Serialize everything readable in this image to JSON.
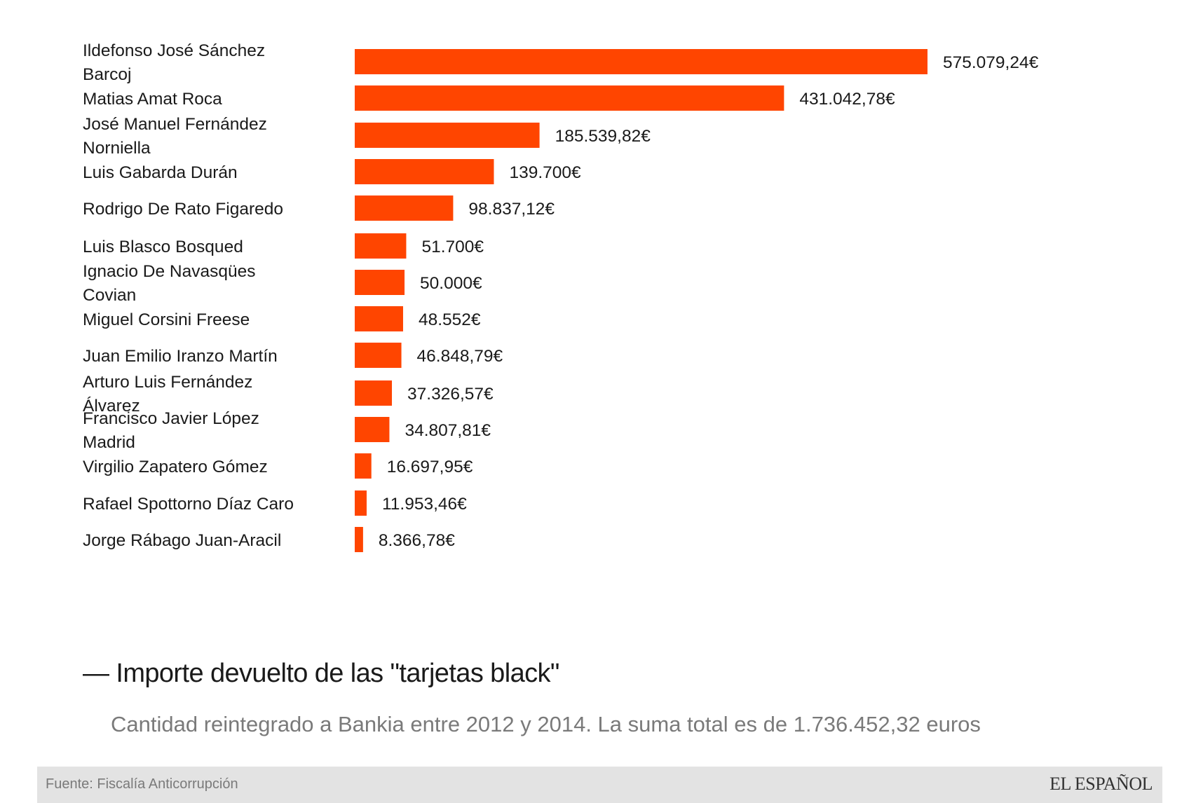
{
  "chart_data": {
    "type": "bar",
    "orientation": "horizontal",
    "categories": [
      [
        "Ildefonso José Sánchez",
        "Barcoj"
      ],
      [
        "Matias Amat Roca"
      ],
      [
        "José Manuel Fernández",
        "Norniella"
      ],
      [
        "Luis Gabarda Durán"
      ],
      [
        "Rodrigo De Rato Figaredo"
      ],
      [
        "Luis Blasco Bosqued"
      ],
      [
        "Ignacio De Navasqües",
        "Covian"
      ],
      [
        "Miguel Corsini Freese"
      ],
      [
        "Juan Emilio Iranzo Martín"
      ],
      [
        "Arturo Luis Fernández",
        "Álvarez"
      ],
      [
        "Francisco Javier López",
        "Madrid"
      ],
      [
        "Virgilio Zapatero Gómez"
      ],
      [
        "Rafael Spottorno Díaz Caro"
      ],
      [
        "Jorge Rábago Juan-Aracil"
      ]
    ],
    "values": [
      575079.24,
      431042.78,
      185539.82,
      139700,
      98837.12,
      51700,
      50000,
      48552,
      46848.79,
      37326.57,
      34807.81,
      16697.95,
      11953.46,
      8366.78
    ],
    "value_labels": [
      "575.079,24€",
      "431.042,78€",
      "185.539,82€",
      "139.700€",
      "98.837,12€",
      "51.700€",
      "50.000€",
      "48.552€",
      "46.848,79€",
      "37.326,57€",
      "34.807,81€",
      "16.697,95€",
      "11.953,46€",
      "8.366,78€"
    ],
    "bar_color": "#ff4500",
    "xlim": [
      0,
      575079.24
    ],
    "grid": false,
    "legend": "none"
  },
  "title": "— Importe devuelto de las \"tarjetas black\"",
  "subtitle": "Cantidad reintegrado a Bankia entre 2012 y 2014. La suma total es de 1.736.452,32 euros",
  "footer": {
    "source": "Fuente: Fiscalía Anticorrupción",
    "brand": "EL ESPAÑOL"
  }
}
